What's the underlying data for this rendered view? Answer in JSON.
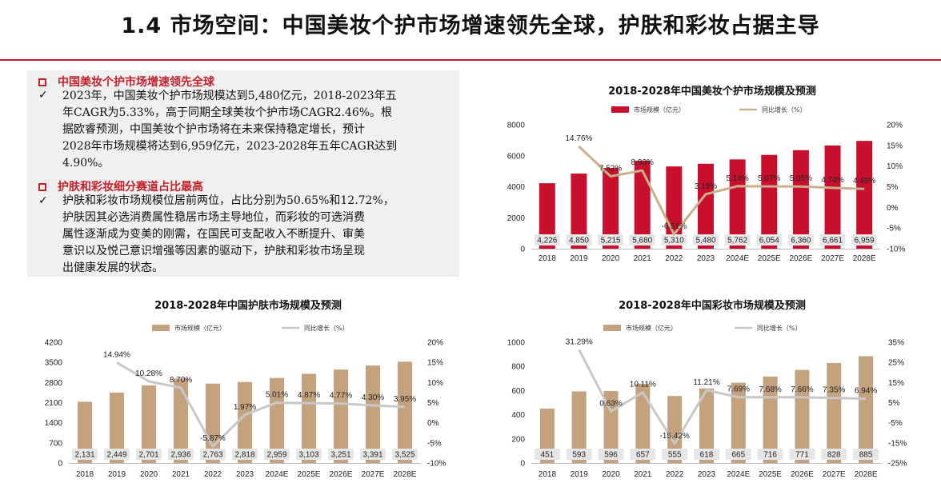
{
  "title": "1.4 市场空间：中国美妆个护市场增速领先全球，护肤和彩妆占据主导",
  "text_panel": {
    "head1": "中国美妆个护市场增速领先全球",
    "lines1": [
      "2023年，中国美妆个护市场规模达到5,480亿元，2018-2023年五",
      "年CAGR为5.33%，高于同期全球美妆个护市场CAGR2.46%。根",
      "据欧睿预测，中国美妆个护市场将在未来保持稳定增长，预计",
      "2028年市场规模将达到6,959亿元，2023-2028年五年CAGR达到",
      "4.90%。"
    ],
    "head2": "护肤和彩妆细分赛道占比最高",
    "lines2": [
      "护肤和彩妆市场规模位居前两位，占比分别为50.65%和12.72%，",
      "护肤因其必选消费属性稳居市场主导地位，而彩妆的可选消费",
      "属性逐渐成为变美的刚需，在国民可支配收入不断提升、审美",
      "意识以及悦己意识增强等因素的驱动下，护肤和彩妆市场呈现",
      "出健康发展的状态。"
    ],
    "check": "✓"
  },
  "chart_data": [
    {
      "type": "bar",
      "title": "2018-2028年中国美妆个护市场规模及预测",
      "categories": [
        "2018",
        "2019",
        "2020",
        "2021",
        "2022",
        "2023",
        "2024E",
        "2025E",
        "2026E",
        "2027E",
        "2028E"
      ],
      "series": [
        {
          "name": "市场规模（亿元）",
          "type": "bar",
          "axis": "left",
          "color": "#c8102e",
          "values": [
            4226,
            4850,
            5215,
            5680,
            5310,
            5480,
            5762,
            6054,
            6360,
            6661,
            6959
          ],
          "labels": [
            "4,226",
            "4,850",
            "5,215",
            "5,680",
            "5,310",
            "5,480",
            "5,762",
            "6,054",
            "6,360",
            "6,661",
            "6,959"
          ]
        },
        {
          "name": "同比增长（%）",
          "type": "line",
          "axis": "right",
          "color": "#c8b08a",
          "values": [
            null,
            14.76,
            7.52,
            8.93,
            -6.51,
            3.19,
            5.14,
            5.07,
            5.05,
            4.74,
            4.48
          ],
          "labels": [
            "",
            "14.76%",
            "7.52%",
            "8.93%",
            "-6.51%",
            "3.19%",
            "5.14%",
            "5.07%",
            "5.05%",
            "4.74%",
            "4.48%"
          ]
        }
      ],
      "ylim": [
        0,
        8000
      ],
      "yticks": [
        0,
        2000,
        4000,
        6000,
        8000
      ],
      "yticklabels": [
        "0",
        "2000",
        "4000",
        "6000",
        "8000"
      ],
      "y2lim": [
        -10,
        20
      ],
      "y2ticks": [
        -10,
        -5,
        0,
        5,
        10,
        15,
        20
      ],
      "y2ticklabels": [
        "-10%",
        "-5%",
        "0%",
        "5%",
        "10%",
        "15%",
        "20%"
      ],
      "legend": "top-center",
      "grid": false
    },
    {
      "type": "bar",
      "title": "2018-2028年中国护肤市场规模及预测",
      "categories": [
        "2018",
        "2019",
        "2020",
        "2021",
        "2022",
        "2023",
        "2024E",
        "2025E",
        "2026E",
        "2027E",
        "2028E"
      ],
      "series": [
        {
          "name": "市场规模（亿元）",
          "type": "bar",
          "axis": "left",
          "color": "#c4a27e",
          "values": [
            2131,
            2449,
            2701,
            2936,
            2763,
            2818,
            2959,
            3103,
            3251,
            3391,
            3525
          ],
          "labels": [
            "2,131",
            "2,449",
            "2,701",
            "2,936",
            "2,763",
            "2,818",
            "2,959",
            "3,103",
            "3,251",
            "3,391",
            "3,525"
          ]
        },
        {
          "name": "同比增长（%）",
          "type": "line",
          "axis": "right",
          "color": "#c8c8c8",
          "values": [
            null,
            14.94,
            10.28,
            8.7,
            -5.87,
            1.97,
            5.01,
            4.87,
            4.77,
            4.3,
            3.95
          ],
          "labels": [
            "",
            "14.94%",
            "10.28%",
            "8.70%",
            "-5.87%",
            "1.97%",
            "5.01%",
            "4.87%",
            "4.77%",
            "4.30%",
            "3.95%"
          ]
        }
      ],
      "ylim": [
        0,
        4200
      ],
      "yticks": [
        0,
        700,
        1400,
        2100,
        2800,
        3500,
        4200
      ],
      "yticklabels": [
        "0",
        "700",
        "1400",
        "2100",
        "2800",
        "3500",
        "4200"
      ],
      "y2lim": [
        -10,
        20
      ],
      "y2ticks": [
        -10,
        -5,
        0,
        5,
        10,
        15,
        20
      ],
      "y2ticklabels": [
        "-10%",
        "-5%",
        "0%",
        "5%",
        "10%",
        "15%",
        "20%"
      ],
      "legend": "top-center",
      "grid": false
    },
    {
      "type": "bar",
      "title": "2018-2028年中国彩妆市场规模及预测",
      "categories": [
        "2018",
        "2019",
        "2020",
        "2021",
        "2022",
        "2023",
        "2024E",
        "2025E",
        "2026E",
        "2027E",
        "2028E"
      ],
      "series": [
        {
          "name": "市场规模（亿元）",
          "type": "bar",
          "axis": "left",
          "color": "#c4a27e",
          "values": [
            451,
            593,
            596,
            657,
            555,
            618,
            665,
            716,
            771,
            828,
            885
          ],
          "labels": [
            "451",
            "593",
            "596",
            "657",
            "555",
            "618",
            "665",
            "716",
            "771",
            "828",
            "885"
          ]
        },
        {
          "name": "同比增长（%）",
          "type": "line",
          "axis": "right",
          "color": "#c8c8c8",
          "values": [
            null,
            31.29,
            0.63,
            10.11,
            -15.42,
            11.21,
            7.69,
            7.68,
            7.66,
            7.35,
            6.94
          ],
          "labels": [
            "",
            "31.29%",
            "0.63%",
            "10.11%",
            "-15.42%",
            "11.21%",
            "7.69%",
            "7.68%",
            "7.66%",
            "7.35%",
            "6.94%"
          ]
        }
      ],
      "ylim": [
        0,
        1000
      ],
      "yticks": [
        0,
        200,
        400,
        600,
        800,
        1000
      ],
      "yticklabels": [
        "0",
        "200",
        "400",
        "600",
        "800",
        "1000"
      ],
      "y2lim": [
        -25,
        35
      ],
      "y2ticks": [
        -25,
        -15,
        -5,
        5,
        15,
        25,
        35
      ],
      "y2ticklabels": [
        "-25%",
        "-15%",
        "-5%",
        "5%",
        "15%",
        "25%",
        "35%"
      ],
      "legend": "top-center",
      "grid": false
    }
  ]
}
